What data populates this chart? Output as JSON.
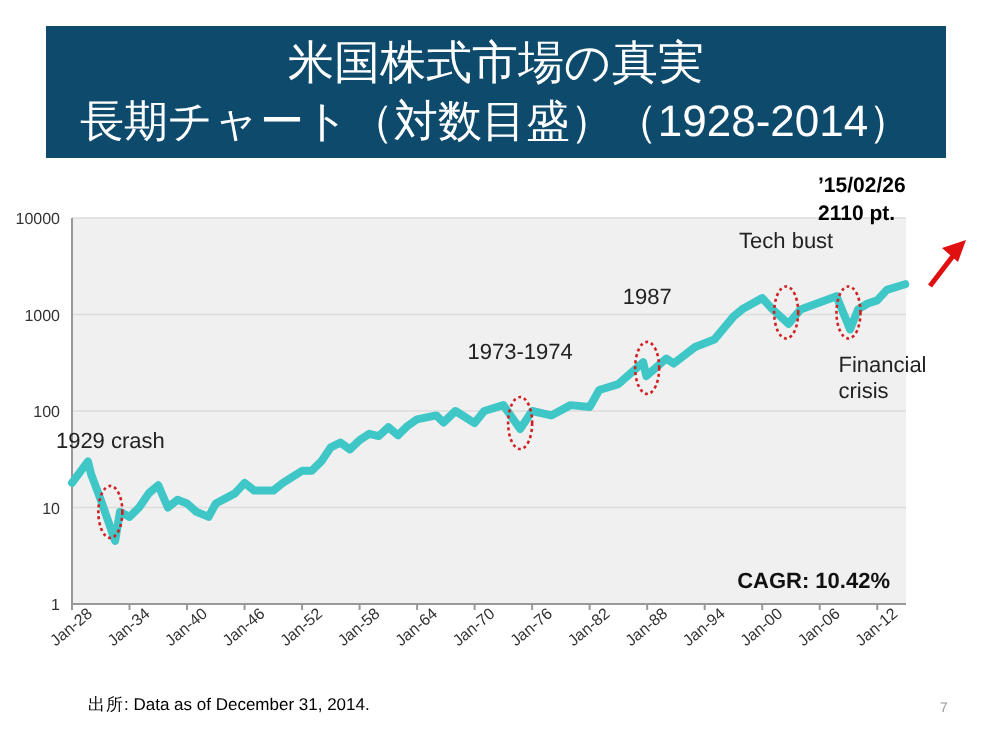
{
  "chart_data": {
    "type": "line",
    "title": "米国株式市場の真実",
    "subtitle": "長期チャート（対数目盛）（1928-2014）",
    "x": [
      "1928-01",
      "1929-09",
      "1930-01",
      "1931-01",
      "1932-07",
      "1933-01",
      "1934-01",
      "1935-01",
      "1936-01",
      "1937-01",
      "1938-01",
      "1939-01",
      "1940-01",
      "1941-01",
      "1942-04",
      "1943-01",
      "1945-01",
      "1946-01",
      "1947-01",
      "1949-01",
      "1950-01",
      "1952-01",
      "1953-01",
      "1954-01",
      "1955-01",
      "1956-01",
      "1957-01",
      "1958-01",
      "1959-01",
      "1960-01",
      "1961-01",
      "1962-01",
      "1963-01",
      "1964-01",
      "1966-01",
      "1966-10",
      "1968-01",
      "1970-01",
      "1971-01",
      "1973-01",
      "1974-10",
      "1976-01",
      "1978-01",
      "1980-01",
      "1982-01",
      "1983-01",
      "1985-01",
      "1987-08",
      "1987-12",
      "1990-01",
      "1990-10",
      "1993-01",
      "1995-01",
      "1997-01",
      "1998-01",
      "2000-01",
      "2001-01",
      "2002-10",
      "2004-01",
      "2007-10",
      "2009-03",
      "2010-01",
      "2011-01",
      "2012-01",
      "2013-01",
      "2014-12"
    ],
    "series": [
      {
        "color": "#3fc6c6",
        "values": [
          18,
          30,
          22,
          12,
          4.5,
          9,
          8,
          10,
          14,
          17,
          10,
          12,
          11,
          9,
          8,
          11,
          14,
          18,
          15,
          15,
          18,
          24,
          24,
          30,
          42,
          47,
          40,
          50,
          58,
          55,
          68,
          56,
          70,
          82,
          90,
          76,
          100,
          75,
          100,
          115,
          65,
          100,
          90,
          115,
          110,
          165,
          190,
          320,
          230,
          350,
          310,
          460,
          550,
          950,
          1150,
          1480,
          1150,
          800,
          1130,
          1550,
          700,
          1130,
          1300,
          1400,
          1800,
          2060
        ]
      }
    ],
    "xlim": [
      "1928-01",
      "2015-01"
    ],
    "ylim": [
      1,
      10000
    ],
    "log": "y",
    "grid": "y",
    "line_style": "solid",
    "marker": "none",
    "xticks": [
      {
        "value": "1928-01",
        "label": "Jan-28"
      },
      {
        "value": "1934-01",
        "label": "Jan-34"
      },
      {
        "value": "1940-01",
        "label": "Jan-40"
      },
      {
        "value": "1946-01",
        "label": "Jan-46"
      },
      {
        "value": "1952-01",
        "label": "Jan-52"
      },
      {
        "value": "1958-01",
        "label": "Jan-58"
      },
      {
        "value": "1964-01",
        "label": "Jan-64"
      },
      {
        "value": "1970-01",
        "label": "Jan-70"
      },
      {
        "value": "1976-01",
        "label": "Jan-76"
      },
      {
        "value": "1982-01",
        "label": "Jan-82"
      },
      {
        "value": "1988-01",
        "label": "Jan-88"
      },
      {
        "value": "1994-01",
        "label": "Jan-94"
      },
      {
        "value": "2000-01",
        "label": "Jan-00"
      },
      {
        "value": "2006-01",
        "label": "Jan-06"
      },
      {
        "value": "2012-01",
        "label": "Jan-12"
      }
    ],
    "yticks": [
      1,
      10,
      100,
      1000,
      10000
    ],
    "annotations": [
      {
        "text": "1929 crash",
        "x": "1932-01",
        "y": 9
      },
      {
        "text": "1973-1974",
        "x": "1974-10",
        "y": 75
      },
      {
        "text": "1987",
        "x": "1988-01",
        "y": 280
      },
      {
        "text": "Tech bust",
        "x": "2002-07",
        "y": 1050
      },
      {
        "text": "Financial crisis",
        "x": "2009-01",
        "y": 1050
      },
      "CAGR: 10.42%",
      "’15/02/26\n2110 pt.",
      "出所: Data as of December 31, 2014.",
      "7"
    ]
  }
}
